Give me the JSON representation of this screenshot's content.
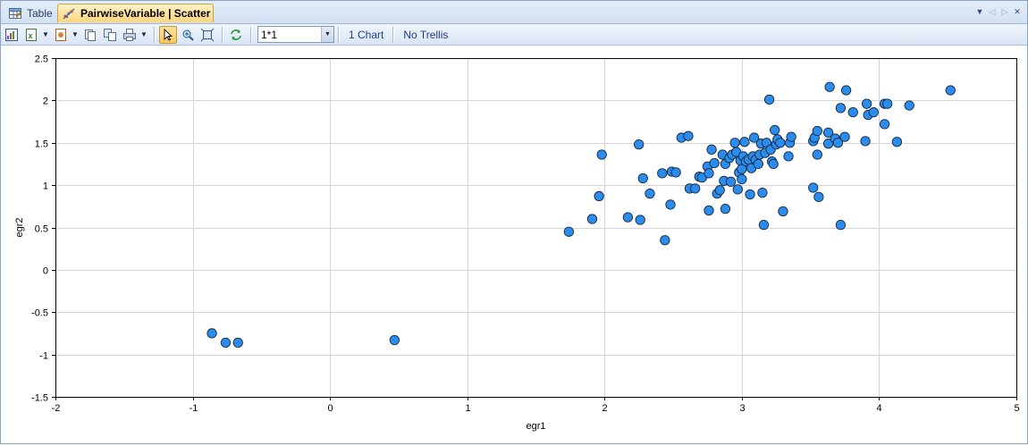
{
  "tabs": [
    {
      "label": "Table",
      "icon": "table-icon",
      "active": false
    },
    {
      "label": "PairwiseVariable | Scatter",
      "icon": "scatter-icon",
      "active": true
    }
  ],
  "toolbar": {
    "layout_value": "1*1",
    "chart_count_label": "1 Chart",
    "trellis_label": "No Trellis"
  },
  "colors": {
    "point_fill": "#2b8cf0",
    "point_stroke": "#1a2a3a",
    "grid": "#d4d4d4",
    "active_tab": "#ffd67d"
  },
  "chart_data": {
    "type": "scatter",
    "xlabel": "egr1",
    "ylabel": "egr2",
    "xlim": [
      -2,
      5
    ],
    "ylim": [
      -1.5,
      2.5
    ],
    "x_ticks": [
      "-2",
      "-1",
      "0",
      "1",
      "2",
      "3",
      "4",
      "5"
    ],
    "y_ticks": [
      "-1.5",
      "-1",
      "-0.5",
      "0",
      "0.5",
      "1",
      "1.5",
      "2",
      "2.5"
    ],
    "grid": true,
    "points": [
      [
        -0.86,
        -0.75
      ],
      [
        -0.76,
        -0.86
      ],
      [
        -0.67,
        -0.86
      ],
      [
        0.47,
        -0.83
      ],
      [
        1.74,
        0.45
      ],
      [
        1.91,
        0.6
      ],
      [
        1.96,
        0.87
      ],
      [
        1.98,
        1.36
      ],
      [
        2.17,
        0.62
      ],
      [
        2.25,
        1.48
      ],
      [
        2.26,
        0.59
      ],
      [
        2.28,
        1.08
      ],
      [
        2.33,
        0.9
      ],
      [
        2.42,
        1.14
      ],
      [
        2.44,
        0.35
      ],
      [
        2.48,
        0.77
      ],
      [
        2.49,
        1.16
      ],
      [
        2.52,
        1.15
      ],
      [
        2.56,
        1.56
      ],
      [
        2.61,
        1.58
      ],
      [
        2.62,
        0.96
      ],
      [
        2.66,
        0.96
      ],
      [
        2.69,
        1.1
      ],
      [
        2.71,
        1.09
      ],
      [
        2.75,
        1.22
      ],
      [
        2.76,
        0.7
      ],
      [
        2.76,
        1.14
      ],
      [
        2.78,
        1.42
      ],
      [
        2.8,
        1.26
      ],
      [
        2.82,
        0.9
      ],
      [
        2.84,
        0.94
      ],
      [
        2.86,
        1.36
      ],
      [
        2.87,
        1.05
      ],
      [
        2.88,
        0.72
      ],
      [
        2.88,
        1.25
      ],
      [
        2.91,
        1.32
      ],
      [
        2.92,
        1.04
      ],
      [
        2.93,
        1.36
      ],
      [
        2.95,
        1.5
      ],
      [
        2.96,
        1.39
      ],
      [
        2.97,
        0.95
      ],
      [
        2.98,
        1.15
      ],
      [
        2.99,
        1.29
      ],
      [
        3.0,
        1.07
      ],
      [
        3.0,
        1.19
      ],
      [
        3.01,
        1.34
      ],
      [
        3.02,
        1.51
      ],
      [
        3.03,
        1.28
      ],
      [
        3.05,
        1.3
      ],
      [
        3.06,
        0.89
      ],
      [
        3.07,
        1.2
      ],
      [
        3.08,
        1.34
      ],
      [
        3.09,
        1.56
      ],
      [
        3.1,
        1.3
      ],
      [
        3.12,
        1.25
      ],
      [
        3.13,
        1.36
      ],
      [
        3.14,
        1.49
      ],
      [
        3.15,
        0.91
      ],
      [
        3.16,
        0.53
      ],
      [
        3.17,
        1.38
      ],
      [
        3.18,
        1.5
      ],
      [
        3.2,
        2.01
      ],
      [
        3.21,
        1.42
      ],
      [
        3.22,
        1.28
      ],
      [
        3.23,
        1.25
      ],
      [
        3.24,
        1.65
      ],
      [
        3.25,
        1.48
      ],
      [
        3.26,
        1.54
      ],
      [
        3.28,
        1.5
      ],
      [
        3.3,
        0.69
      ],
      [
        3.34,
        1.34
      ],
      [
        3.35,
        1.5
      ],
      [
        3.36,
        1.57
      ],
      [
        3.52,
        0.97
      ],
      [
        3.52,
        1.52
      ],
      [
        3.53,
        1.56
      ],
      [
        3.55,
        1.36
      ],
      [
        3.55,
        1.64
      ],
      [
        3.56,
        0.86
      ],
      [
        3.63,
        1.49
      ],
      [
        3.63,
        1.62
      ],
      [
        3.64,
        2.16
      ],
      [
        3.68,
        1.55
      ],
      [
        3.7,
        1.5
      ],
      [
        3.72,
        0.53
      ],
      [
        3.72,
        1.91
      ],
      [
        3.75,
        1.57
      ],
      [
        3.76,
        2.12
      ],
      [
        3.81,
        1.86
      ],
      [
        3.9,
        1.52
      ],
      [
        3.91,
        1.96
      ],
      [
        3.92,
        1.83
      ],
      [
        3.96,
        1.86
      ],
      [
        4.04,
        1.72
      ],
      [
        4.04,
        1.96
      ],
      [
        4.06,
        1.96
      ],
      [
        4.13,
        1.51
      ],
      [
        4.22,
        1.94
      ],
      [
        4.52,
        2.12
      ]
    ]
  }
}
